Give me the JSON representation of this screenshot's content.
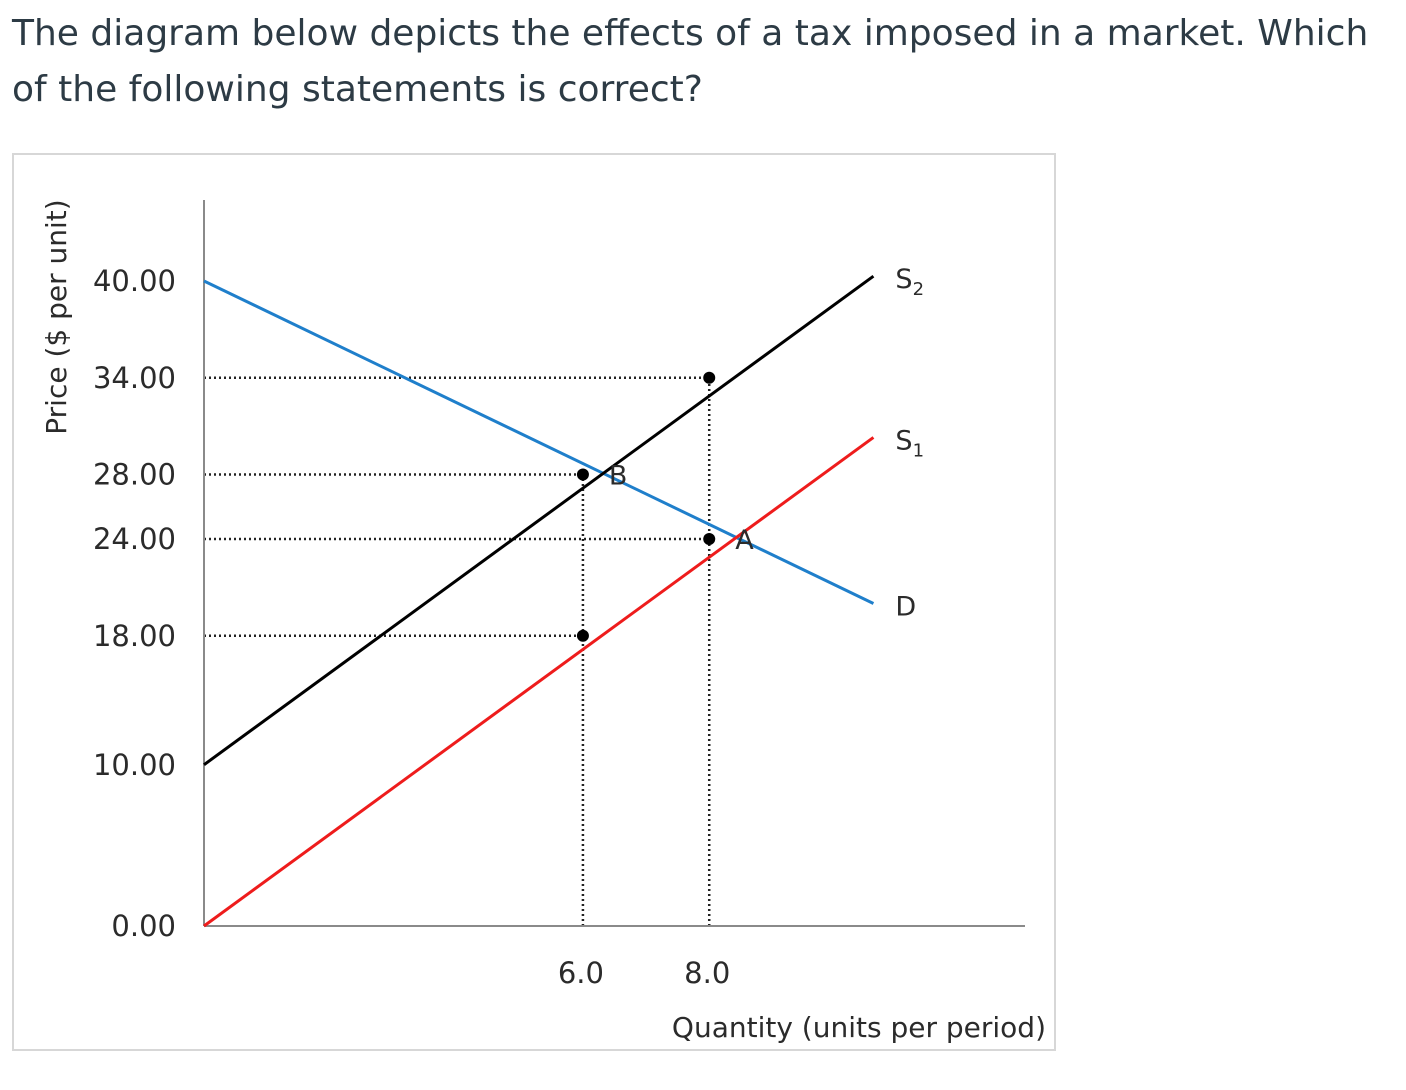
{
  "question": {
    "text": "The diagram below depicts the effects of a tax imposed in a market. Which of the following statements is correct?"
  },
  "chart_data": {
    "type": "line",
    "xlabel": "Quantity (units per period)",
    "ylabel": "Price ($ per unit)",
    "xlim": [
      0,
      13
    ],
    "ylim": [
      0,
      40
    ],
    "grid": false,
    "x_ticks": [
      {
        "value": 6,
        "label": "6.0"
      },
      {
        "value": 8,
        "label": "8.0"
      }
    ],
    "y_ticks": [
      {
        "value": 40,
        "label": "40.00"
      },
      {
        "value": 34,
        "label": "34.00"
      },
      {
        "value": 28,
        "label": "28.00"
      },
      {
        "value": 24,
        "label": "24.00"
      },
      {
        "value": 18,
        "label": "18.00"
      },
      {
        "value": 10,
        "label": "10.00"
      },
      {
        "value": 0,
        "label": "0.00"
      }
    ],
    "series": [
      {
        "key": "D",
        "name": "D",
        "name_sub": "",
        "color": "#1f7fcb",
        "x": [
          0,
          10.6
        ],
        "y": [
          40,
          20
        ]
      },
      {
        "key": "S1",
        "name": "S",
        "name_sub": "1",
        "color": "#ee1c1c",
        "x": [
          0,
          10.6
        ],
        "y": [
          0,
          30.3
        ]
      },
      {
        "key": "S2",
        "name": "S",
        "name_sub": "2",
        "color": "#000000",
        "x": [
          0,
          10.6
        ],
        "y": [
          10,
          40.3
        ]
      }
    ],
    "points": [
      {
        "name": "equilibrium-point-b",
        "x": 6,
        "y": 28
      },
      {
        "name": "equilibrium-point-a",
        "x": 8,
        "y": 24
      },
      {
        "name": "point-s1-q6",
        "x": 6,
        "y": 18
      },
      {
        "name": "point-s2-q8",
        "x": 8,
        "y": 34
      }
    ],
    "point_labels": [
      {
        "name": "point-label-b",
        "text": "B",
        "x": 6,
        "y": 28
      },
      {
        "name": "point-label-a",
        "text": "A",
        "x": 8,
        "y": 24
      }
    ],
    "reference_lines": [
      {
        "orientation": "horizontal",
        "y": 34,
        "x_end": 8
      },
      {
        "orientation": "horizontal",
        "y": 28,
        "x_end": 6
      },
      {
        "orientation": "horizontal",
        "y": 24,
        "x_end": 8
      },
      {
        "orientation": "horizontal",
        "y": 18,
        "x_end": 6
      },
      {
        "orientation": "vertical",
        "x": 6,
        "y_end": 28
      },
      {
        "orientation": "vertical",
        "x": 8,
        "y_end": 34
      }
    ]
  }
}
